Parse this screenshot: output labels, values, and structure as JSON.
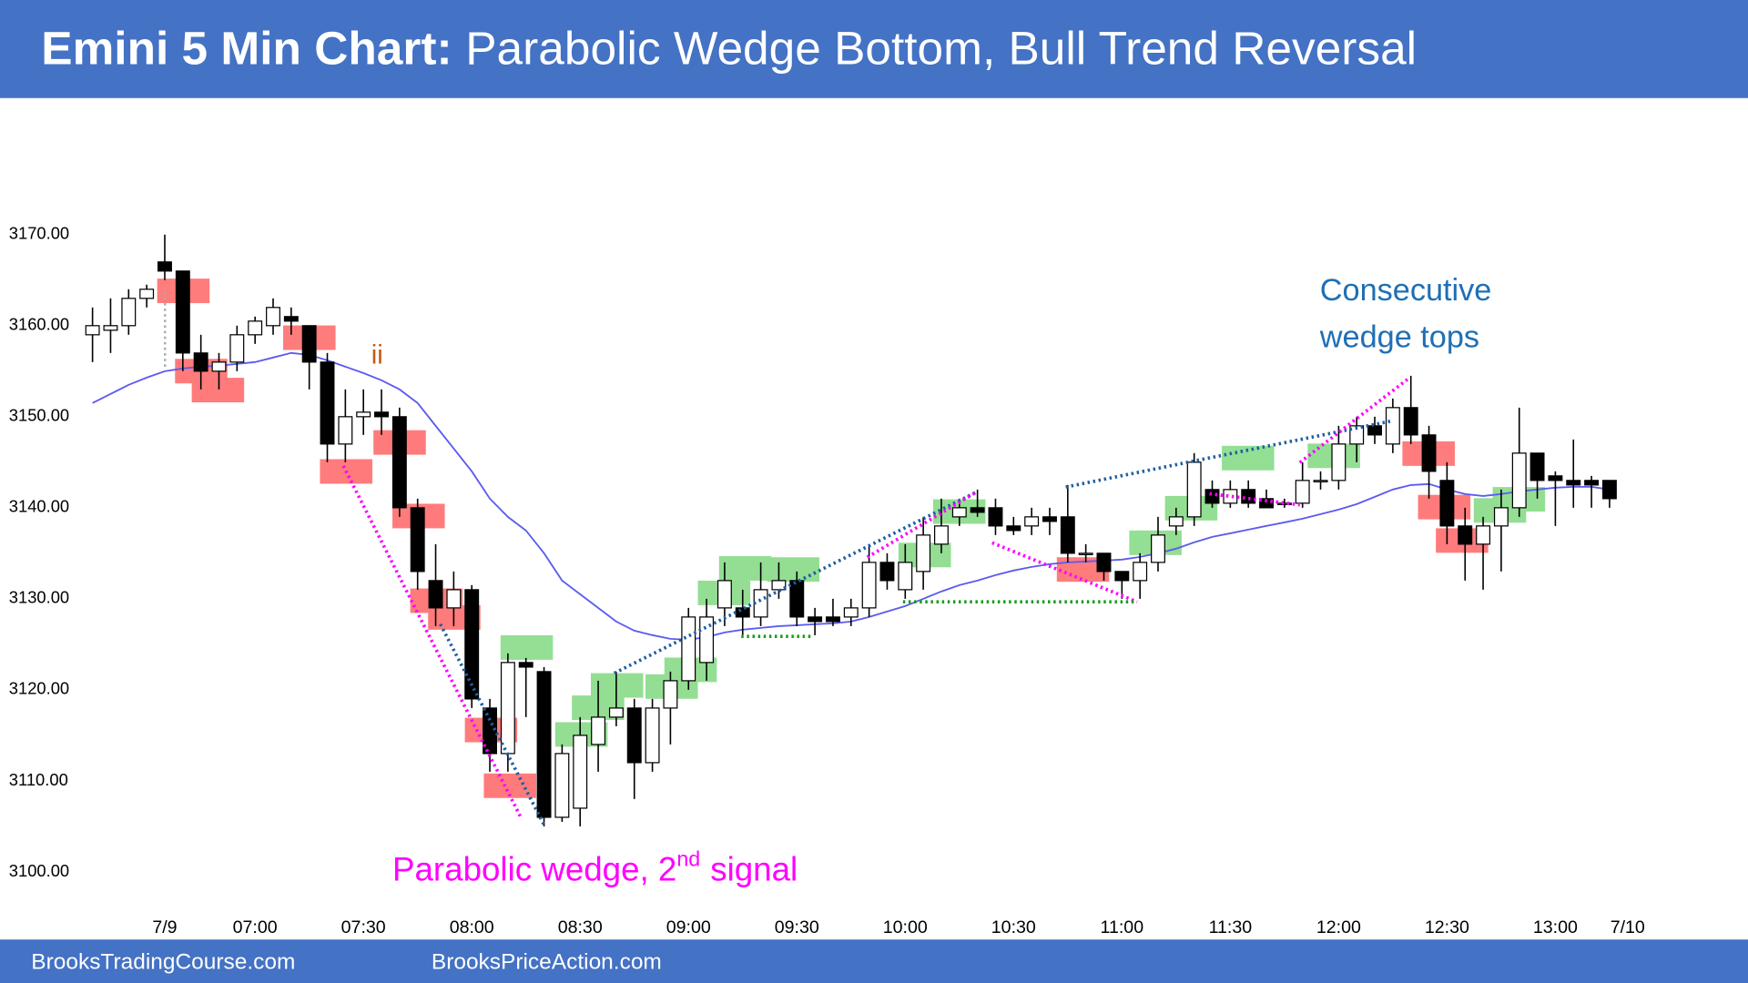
{
  "chart_data": {
    "type": "candlestick",
    "title": "Emini 5 Min Chart:",
    "subtitle": "Parabolic Wedge Bottom, Bull Trend Reversal",
    "footer": [
      "BrooksTradingCourse.com",
      "BrooksPriceAction.com"
    ],
    "annotations": [
      "ii",
      "Consecutive",
      "wedge tops",
      "Parabolic wedge, 2",
      "nd",
      "signal"
    ],
    "categories": [
      null,
      null,
      null,
      null,
      "7/9",
      null,
      null,
      null,
      null,
      "07:00",
      null,
      null,
      null,
      null,
      null,
      "07:30",
      null,
      null,
      null,
      null,
      null,
      "08:00",
      null,
      null,
      null,
      null,
      null,
      "08:30",
      null,
      null,
      null,
      null,
      null,
      "09:00",
      null,
      null,
      null,
      null,
      null,
      "09:30",
      null,
      null,
      null,
      null,
      null,
      "10:00",
      null,
      null,
      null,
      null,
      null,
      "10:30",
      null,
      null,
      null,
      null,
      null,
      "11:00",
      null,
      null,
      null,
      null,
      null,
      "11:30",
      null,
      null,
      null,
      null,
      null,
      "12:00",
      null,
      null,
      null,
      null,
      null,
      "12:30",
      null,
      null,
      null,
      null,
      null,
      "13:00",
      null,
      null,
      null,
      "7/10"
    ],
    "open": [
      3159,
      3159.5,
      3160,
      3163,
      3167,
      3166,
      3157,
      3155,
      3156,
      3159,
      3160,
      3161,
      3160,
      3156,
      3147,
      3150,
      3150.5,
      3150,
      3140,
      3132,
      3129,
      3131,
      3118,
      3113,
      3123,
      3122,
      3106,
      3107,
      3114,
      3117,
      3118,
      3112,
      3118,
      3121,
      3123,
      3129,
      3129,
      3128,
      3131,
      3132,
      3128,
      3128,
      3128,
      3129,
      3134,
      3131,
      3133,
      3136,
      3139,
      3140,
      3140,
      3138,
      3138,
      3139,
      3139,
      3135,
      3135,
      3133,
      3132,
      3134,
      3138,
      3139,
      3142,
      3140.5,
      3142,
      3141,
      3140.5,
      3140.5,
      3143,
      3143,
      3147,
      3149,
      3147,
      3151,
      3148,
      3143,
      3138,
      3136,
      3138,
      3140,
      3146,
      3143.5,
      3143,
      3143,
      3143,
      null
    ],
    "high": [
      3162,
      3163,
      3164,
      3164.5,
      3170,
      3166,
      3159,
      3157,
      3160,
      3161,
      3163,
      3162,
      3160,
      3157,
      3153,
      3153,
      3153,
      3151,
      3141,
      3136,
      3133,
      3131.5,
      3119,
      3124,
      3123.5,
      3122.5,
      3114,
      3117,
      3121,
      3122,
      3119,
      3119,
      3122,
      3129,
      3130,
      3134,
      3131,
      3134,
      3134,
      3133,
      3129,
      3130,
      3130,
      3136,
      3135,
      3136,
      3139,
      3141,
      3141,
      3142,
      3141,
      3139,
      3140,
      3140,
      3142.5,
      3136,
      3135,
      3133,
      3135,
      3139,
      3140,
      3146,
      3143,
      3143,
      3143,
      3142,
      3141,
      3145,
      3144,
      3149,
      3150,
      3150,
      3152,
      3154.5,
      3149,
      3145,
      3140,
      3139,
      3142,
      3151,
      3146,
      3144,
      3147.5,
      3143.5,
      3143,
      null
    ],
    "low": [
      3156,
      3157,
      3159,
      3162,
      3165,
      3155,
      3153,
      3153,
      3155,
      3158,
      3159,
      3159,
      3153,
      3145,
      3145,
      3148,
      3148,
      3139,
      3131,
      3127,
      3127,
      3118,
      3111,
      3111,
      3117,
      3105,
      3105.5,
      3105,
      3111,
      3116,
      3108,
      3111,
      3114,
      3120,
      3121,
      3127,
      3126,
      3127,
      3130,
      3127,
      3126,
      3127,
      3127,
      3128,
      3131,
      3130,
      3131,
      3135,
      3138,
      3139,
      3137,
      3137,
      3137,
      3137,
      3134,
      3134,
      3132,
      3130,
      3130,
      3133,
      3137,
      3138,
      3140,
      3140,
      3140,
      3140,
      3140,
      3140,
      3142,
      3142,
      3145,
      3147,
      3146,
      3147,
      3141,
      3136,
      3132,
      3131,
      3133,
      3139,
      3141,
      3138,
      3140,
      3140,
      3140,
      null
    ],
    "close": [
      3160,
      3160,
      3163,
      3164,
      3166,
      3157,
      3155,
      3156,
      3159,
      3160.5,
      3162,
      3160.5,
      3156,
      3147,
      3150,
      3150.5,
      3150,
      3140,
      3133,
      3129,
      3131,
      3119,
      3113,
      3123,
      3122.5,
      3106,
      3113,
      3115,
      3117,
      3118,
      3112,
      3118,
      3121,
      3128,
      3128,
      3132,
      3128,
      3131,
      3132,
      3128,
      3127.5,
      3127.5,
      3129,
      3134,
      3132,
      3134,
      3137,
      3138,
      3140,
      3139.5,
      3138,
      3137.5,
      3139,
      3138.5,
      3135,
      3135,
      3133,
      3132,
      3134,
      3137,
      3139,
      3145,
      3140.5,
      3142,
      3140.5,
      3140,
      3140.5,
      3143,
      3143,
      3147,
      3149,
      3148,
      3151,
      3148,
      3144,
      3138,
      3136,
      3138,
      3140,
      3146,
      3143,
      3143,
      3142.5,
      3142.5,
      3141,
      null
    ],
    "ema": {
      "color": "#5b5bf0",
      "values": [
        3151.5,
        3152.5,
        3153.5,
        3154.3,
        3155,
        3155.3,
        3155.5,
        3155.6,
        3155.8,
        3156,
        3156.5,
        3157,
        3156.8,
        3156.2,
        3155.5,
        3154.8,
        3154,
        3153,
        3151.5,
        3149,
        3146.5,
        3144,
        3141,
        3139,
        3137.5,
        3135,
        3132,
        3130.5,
        3129,
        3127.5,
        3126.5,
        3126,
        3125.6,
        3125.5,
        3125.8,
        3126.3,
        3126.6,
        3126.8,
        3127,
        3127.1,
        3127.2,
        3127.3,
        3127.5,
        3128,
        3128.6,
        3129.2,
        3130,
        3130.8,
        3131.5,
        3132,
        3132.6,
        3133.1,
        3133.5,
        3133.8,
        3134,
        3134.1,
        3134.2,
        3134.3,
        3134.6,
        3135,
        3135.5,
        3136.2,
        3136.8,
        3137.2,
        3137.6,
        3138,
        3138.4,
        3138.8,
        3139.3,
        3139.8,
        3140.4,
        3141.2,
        3142,
        3142.5,
        3142.6,
        3142,
        3141.5,
        3141.3,
        3141.5,
        3141.8,
        3142,
        3142.2,
        3142.3,
        3142.3,
        3142,
        null
      ]
    },
    "up_color": "#ffffff",
    "down_color": "#000000",
    "ylim": [
      3096,
      3185
    ],
    "yticks": [
      {
        "value": 3100,
        "label": "3100.00"
      },
      {
        "value": 3110,
        "label": "3110.00"
      },
      {
        "value": 3120,
        "label": "3120.00"
      },
      {
        "value": 3130,
        "label": "3130.00"
      },
      {
        "value": 3140,
        "label": "3140.00"
      },
      {
        "value": 3150,
        "label": "3150.00"
      },
      {
        "value": 3160,
        "label": "3160.00"
      },
      {
        "value": 3170,
        "label": "3170.00"
      }
    ],
    "grid": false
  }
}
